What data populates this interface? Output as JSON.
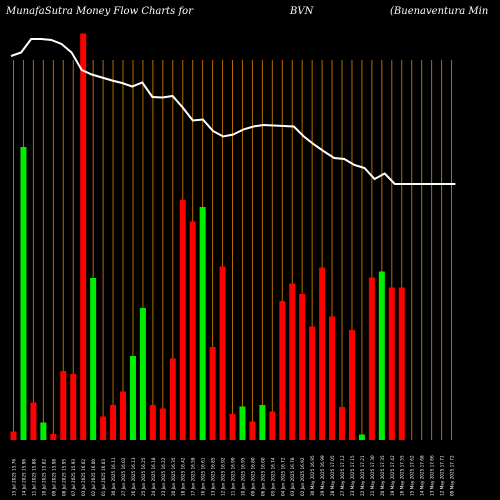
{
  "header": {
    "site_title": "MunafaSutra  Money Flow  Charts for",
    "symbol": "BVN",
    "company": "(Buenaventura  Min"
  },
  "colors": {
    "background": "#000000",
    "up": "#00ee00",
    "down": "#ff0000",
    "grid": "#b36b00",
    "price_line": "#ffffff",
    "label": "#ffffff"
  },
  "chart_data": {
    "type": "bar",
    "title": "",
    "xlabel": "",
    "ylabel": "",
    "grid": true,
    "categories": [
      "Tue 15 Jul",
      "Mon 14 Jul",
      "Fri 11 Jul",
      "Thu 10 Jul",
      "Wed 09 Jul",
      "Tue 08 Jul",
      "Mon 07 Jul",
      "Thu 03 Jul",
      "Wed 02 Jul",
      "Tue 01 Jul",
      "Mon 30 Jun",
      "Fri 27 Jun",
      "Thu 26 Jun",
      "Wed 25 Jun",
      "Tue 24 Jun",
      "Mon 23 Jun",
      "Fri 20 Jun",
      "Wed 18 Jun",
      "Tue 17 Jun",
      "Mon 16 Jun",
      "Fri 13 Jun",
      "Thu 12 Jun",
      "Wed 11 Jun",
      "Tue 10 Jun",
      "Mon 09 Jun",
      "Fri 06 Jun",
      "Thu 05 Jun",
      "Wed 04 Jun",
      "Tue 03 Jun",
      "Mon 02 Jun",
      "Fri 30 May",
      "Thu 29 May",
      "Wed 28 May",
      "Tue 27 May",
      "Fri 23 May",
      "Thu 22 May",
      "Wed 21 May",
      "Tue 20 May",
      "Mon 19 May",
      "Fri 16 May",
      "Thu 15 May",
      "Wed 14 May",
      "Tue 13 May",
      "Mon 12 May",
      "Fri 09 May"
    ],
    "x_tick_labels": [
      "15 Jul 2025 15.76",
      "14 Jul 2025 15.96",
      "11 Jul 2025 15.88",
      "10 Jul 2025 15.82",
      "09 Jul 2025 15.98",
      "08 Jul 2025 15.95",
      "07 Jul 2025 15.93",
      "03 Jul 2025 16.02",
      "02 Jul 2025 16.00",
      "01 Jul 2025 16.03",
      "30 Jun 2025 16.11",
      "27 Jun 2025 16.02",
      "26 Jun 2025 16.13",
      "25 Jun 2025 16.25",
      "24 Jun 2025 16.18",
      "23 Jun 2025 16.22",
      "20 Jun 2025 16.35",
      "18 Jun 2025 16.42",
      "17 Jun 2025 16.58",
      "16 Jun 2025 16.61",
      "13 Jun 2025 16.85",
      "12 Jun 2025 16.92",
      "11 Jun 2025 16.99",
      "10 Jun 2025 16.95",
      "09 Jun 2025 16.80",
      "06 Jun 2025 16.60",
      "05 Jun 2025 16.74",
      "04 Jun 2025 16.72",
      "03 Jun 2025 16.78",
      "02 Jun 2025 16.92",
      "30 May 2025 16.95",
      "29 May 2025 16.99",
      "28 May 2025 17.05",
      "27 May 2025 17.12",
      "23 May 2025 17.15",
      "22 May 2025 17.21",
      "21 May 2025 17.30",
      "20 May 2025 17.35",
      "19 May 2025 17.42",
      "16 May 2025 17.55",
      "15 May 2025 17.62",
      "14 May 2025 17.68",
      "13 May 2025 17.66",
      "12 May 2025 17.71",
      "09 May 2025 17.72"
    ],
    "series": [
      {
        "role": "money_flow_bars",
        "values": [
          0.017,
          0.586,
          0.075,
          0.035,
          0.012,
          0.138,
          0.132,
          0.813,
          0.324,
          0.047,
          0.07,
          0.097,
          0.168,
          0.264,
          0.07,
          0.063,
          0.163,
          0.48,
          0.437,
          0.466,
          0.186,
          0.347,
          0.052,
          0.067,
          0.037,
          0.07,
          0.057,
          0.278,
          0.313,
          0.292,
          0.227,
          0.345,
          0.247,
          0.066,
          0.22,
          0.011,
          0.325,
          0.337,
          0.305,
          0.305,
          0.0,
          0.0,
          0.0,
          0.0,
          0.0
        ],
        "direction": [
          "down",
          "up",
          "down",
          "up",
          "down",
          "down",
          "down",
          "down",
          "up",
          "down",
          "down",
          "down",
          "up",
          "up",
          "down",
          "down",
          "down",
          "down",
          "down",
          "up",
          "down",
          "down",
          "down",
          "up",
          "down",
          "up",
          "down",
          "down",
          "down",
          "down",
          "down",
          "down",
          "down",
          "down",
          "down",
          "up",
          "down",
          "up",
          "down",
          "down",
          "down",
          "down",
          "down",
          "down",
          "down"
        ]
      },
      {
        "role": "price_line",
        "values": [
          0.888,
          0.895,
          0.922,
          0.922,
          0.92,
          0.912,
          0.895,
          0.86,
          0.851,
          0.845,
          0.839,
          0.834,
          0.827,
          0.835,
          0.806,
          0.805,
          0.808,
          0.785,
          0.759,
          0.761,
          0.738,
          0.727,
          0.731,
          0.741,
          0.747,
          0.75,
          0.749,
          0.748,
          0.747,
          0.727,
          0.711,
          0.697,
          0.684,
          0.682,
          0.67,
          0.664,
          0.642,
          0.653,
          0.632,
          0.632,
          0.632,
          0.632,
          0.632,
          0.632,
          0.632
        ]
      }
    ]
  }
}
